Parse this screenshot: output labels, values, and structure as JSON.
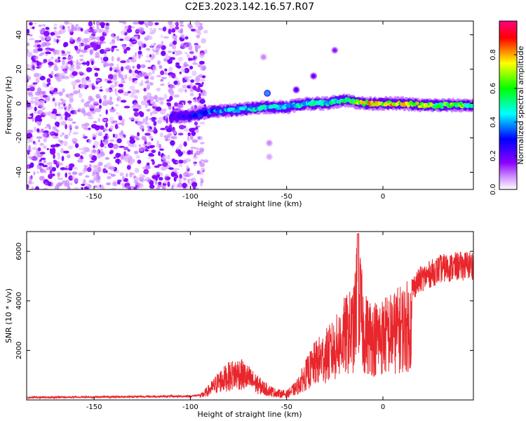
{
  "title": "C2E3.2023.142.16.57.R07",
  "chart_data": [
    {
      "type": "heatmap",
      "name": "spectrogram",
      "xlabel": "Height of straight line (km)",
      "ylabel": "Frequency (Hz)",
      "xlim": [
        -185,
        47
      ],
      "ylim": [
        -50,
        48
      ],
      "x_ticks": [
        -150,
        -100,
        -50,
        0
      ],
      "x_tick_labels": [
        "-150",
        "-100",
        "-50",
        "0"
      ],
      "y_ticks": [
        -40,
        -20,
        0,
        20,
        40
      ],
      "y_tick_labels": [
        "-40",
        "-20",
        "0",
        "20",
        "40"
      ],
      "noise_region_x": [
        -185,
        -92
      ],
      "signal_track": {
        "x": [
          -110,
          -100,
          -90,
          -80,
          -70,
          -60,
          -50,
          -40,
          -30,
          -20,
          -10,
          0,
          10,
          20,
          30,
          40,
          47
        ],
        "freq": [
          -8,
          -7,
          -5,
          -4,
          -3,
          -2,
          -2,
          0,
          0,
          2,
          0,
          0,
          0,
          -1,
          -1,
          -1,
          -1
        ],
        "amplitude": [
          0.22,
          0.32,
          0.4,
          0.45,
          0.5,
          0.5,
          0.48,
          0.5,
          0.55,
          0.55,
          0.82,
          0.8,
          0.85,
          0.75,
          0.65,
          0.72,
          0.6
        ]
      },
      "alias_points": [
        {
          "x": -60,
          "freq": 6,
          "amplitude": 0.4
        },
        {
          "x": -45,
          "freq": 8,
          "amplitude": 0.22
        },
        {
          "x": -36,
          "freq": 16,
          "amplitude": 0.2
        },
        {
          "x": -25,
          "freq": 31,
          "amplitude": 0.15
        },
        {
          "x": -62,
          "freq": 27,
          "amplitude": 0.08
        },
        {
          "x": -59,
          "freq": -23,
          "amplitude": 0.08
        },
        {
          "x": -59,
          "freq": -31,
          "amplitude": 0.06
        }
      ],
      "colorbar": {
        "label": "Normalized spectral amplitude",
        "ticks": [
          0.0,
          0.2,
          0.4,
          0.6,
          0.8
        ],
        "tick_labels": [
          "0.0",
          "0.2",
          "0.4",
          "0.6",
          "0.8"
        ],
        "range": [
          0,
          1
        ],
        "colormap": [
          "#ffffff",
          "#8a00ff",
          "#0000ff",
          "#00ffff",
          "#00ff00",
          "#ffff00",
          "#ff0000",
          "#ff0080"
        ]
      }
    },
    {
      "type": "line",
      "name": "snr",
      "xlabel": "Height of straight line (km)",
      "ylabel": "SNR (10 * v/v)",
      "xlim": [
        -185,
        47
      ],
      "ylim": [
        0,
        6800
      ],
      "x_ticks": [
        -150,
        -100,
        -50,
        0
      ],
      "x_tick_labels": [
        "-150",
        "-100",
        "-50",
        "0"
      ],
      "y_ticks": [
        2000,
        4000,
        6000
      ],
      "y_tick_labels": [
        "2000",
        "4000",
        "6000"
      ],
      "color": "#e8262b",
      "series": [
        {
          "name": "SNR envelope",
          "x": [
            -185,
            -150,
            -100,
            -95,
            -90,
            -85,
            -80,
            -75,
            -70,
            -65,
            -60,
            -55,
            -50,
            -45,
            -40,
            -35,
            -30,
            -25,
            -20,
            -15,
            -13,
            -10,
            -5,
            0,
            5,
            10,
            15,
            20,
            25,
            30,
            35,
            40,
            47
          ],
          "values": [
            100,
            120,
            150,
            200,
            600,
            1100,
            1400,
            1600,
            1300,
            900,
            600,
            400,
            350,
            700,
            1500,
            2200,
            2600,
            3000,
            3800,
            4200,
            6700,
            4000,
            3700,
            3800,
            4000,
            4300,
            4500,
            4900,
            5100,
            5300,
            5350,
            5400,
            5450
          ]
        }
      ]
    }
  ]
}
